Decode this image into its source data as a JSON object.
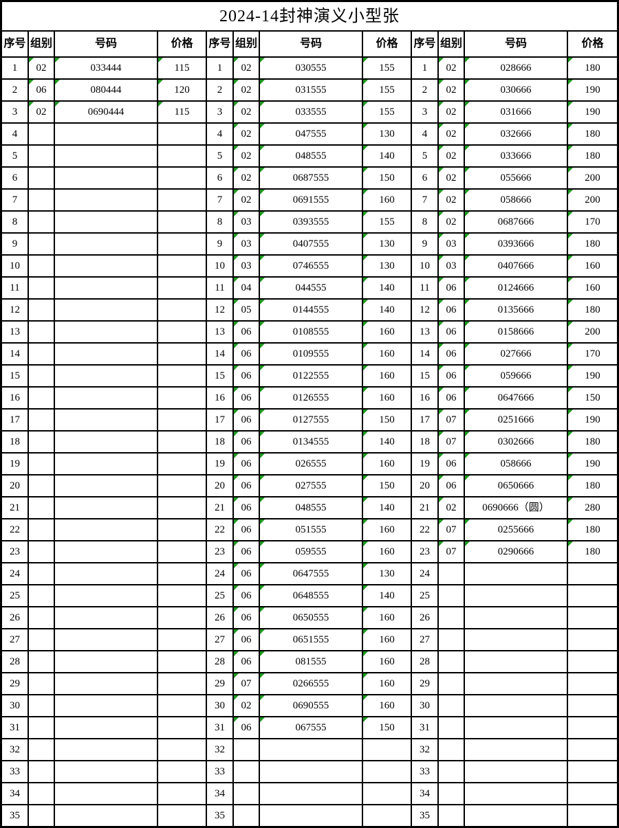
{
  "title": "2024-14封神演义小型张",
  "columns": [
    "序号",
    "组别",
    "号码",
    "价格"
  ],
  "colors": {
    "grid_line": "#000000",
    "cell_background": "#ffffff",
    "error_indicator_green": "#1f9a1f"
  },
  "indicator_exceptions": [
    [
      2,
      20,
      2
    ]
  ],
  "groups": [
    {
      "rows": [
        [
          "1",
          "02",
          "033444",
          "115"
        ],
        [
          "2",
          "06",
          "080444",
          "120"
        ],
        [
          "3",
          "02",
          "0690444",
          "115"
        ],
        [
          "4",
          "",
          "",
          ""
        ],
        [
          "5",
          "",
          "",
          ""
        ],
        [
          "6",
          "",
          "",
          ""
        ],
        [
          "7",
          "",
          "",
          ""
        ],
        [
          "8",
          "",
          "",
          ""
        ],
        [
          "9",
          "",
          "",
          ""
        ],
        [
          "10",
          "",
          "",
          ""
        ],
        [
          "11",
          "",
          "",
          ""
        ],
        [
          "12",
          "",
          "",
          ""
        ],
        [
          "13",
          "",
          "",
          ""
        ],
        [
          "14",
          "",
          "",
          ""
        ],
        [
          "15",
          "",
          "",
          ""
        ],
        [
          "16",
          "",
          "",
          ""
        ],
        [
          "17",
          "",
          "",
          ""
        ],
        [
          "18",
          "",
          "",
          ""
        ],
        [
          "19",
          "",
          "",
          ""
        ],
        [
          "20",
          "",
          "",
          ""
        ],
        [
          "21",
          "",
          "",
          ""
        ],
        [
          "22",
          "",
          "",
          ""
        ],
        [
          "23",
          "",
          "",
          ""
        ],
        [
          "24",
          "",
          "",
          ""
        ],
        [
          "25",
          "",
          "",
          ""
        ],
        [
          "26",
          "",
          "",
          ""
        ],
        [
          "27",
          "",
          "",
          ""
        ],
        [
          "28",
          "",
          "",
          ""
        ],
        [
          "29",
          "",
          "",
          ""
        ],
        [
          "30",
          "",
          "",
          ""
        ],
        [
          "31",
          "",
          "",
          ""
        ],
        [
          "32",
          "",
          "",
          ""
        ],
        [
          "33",
          "",
          "",
          ""
        ],
        [
          "34",
          "",
          "",
          ""
        ],
        [
          "35",
          "",
          "",
          ""
        ]
      ]
    },
    {
      "rows": [
        [
          "1",
          "02",
          "030555",
          "155"
        ],
        [
          "2",
          "02",
          "031555",
          "155"
        ],
        [
          "3",
          "02",
          "033555",
          "155"
        ],
        [
          "4",
          "02",
          "047555",
          "130"
        ],
        [
          "5",
          "02",
          "048555",
          "140"
        ],
        [
          "6",
          "02",
          "0687555",
          "150"
        ],
        [
          "7",
          "02",
          "0691555",
          "160"
        ],
        [
          "8",
          "03",
          "0393555",
          "155"
        ],
        [
          "9",
          "03",
          "0407555",
          "130"
        ],
        [
          "10",
          "03",
          "0746555",
          "130"
        ],
        [
          "11",
          "04",
          "044555",
          "140"
        ],
        [
          "12",
          "05",
          "0144555",
          "140"
        ],
        [
          "13",
          "06",
          "0108555",
          "160"
        ],
        [
          "14",
          "06",
          "0109555",
          "160"
        ],
        [
          "15",
          "06",
          "0122555",
          "160"
        ],
        [
          "16",
          "06",
          "0126555",
          "160"
        ],
        [
          "17",
          "06",
          "0127555",
          "150"
        ],
        [
          "18",
          "06",
          "0134555",
          "140"
        ],
        [
          "19",
          "06",
          "026555",
          "160"
        ],
        [
          "20",
          "06",
          "027555",
          "150"
        ],
        [
          "21",
          "06",
          "048555",
          "140"
        ],
        [
          "22",
          "06",
          "051555",
          "160"
        ],
        [
          "23",
          "06",
          "059555",
          "160"
        ],
        [
          "24",
          "06",
          "0647555",
          "130"
        ],
        [
          "25",
          "06",
          "0648555",
          "140"
        ],
        [
          "26",
          "06",
          "0650555",
          "160"
        ],
        [
          "27",
          "06",
          "0651555",
          "160"
        ],
        [
          "28",
          "06",
          "081555",
          "160"
        ],
        [
          "29",
          "07",
          "0266555",
          "160"
        ],
        [
          "30",
          "02",
          "0690555",
          "160"
        ],
        [
          "31",
          "06",
          "067555",
          "150"
        ],
        [
          "32",
          "",
          "",
          ""
        ],
        [
          "33",
          "",
          "",
          ""
        ],
        [
          "34",
          "",
          "",
          ""
        ],
        [
          "35",
          "",
          "",
          ""
        ]
      ]
    },
    {
      "rows": [
        [
          "1",
          "02",
          "028666",
          "180"
        ],
        [
          "2",
          "02",
          "030666",
          "190"
        ],
        [
          "3",
          "02",
          "031666",
          "190"
        ],
        [
          "4",
          "02",
          "032666",
          "180"
        ],
        [
          "5",
          "02",
          "033666",
          "180"
        ],
        [
          "6",
          "02",
          "055666",
          "200"
        ],
        [
          "7",
          "02",
          "058666",
          "200"
        ],
        [
          "8",
          "02",
          "0687666",
          "170"
        ],
        [
          "9",
          "03",
          "0393666",
          "180"
        ],
        [
          "10",
          "03",
          "0407666",
          "160"
        ],
        [
          "11",
          "06",
          "0124666",
          "160"
        ],
        [
          "12",
          "06",
          "0135666",
          "180"
        ],
        [
          "13",
          "06",
          "0158666",
          "200"
        ],
        [
          "14",
          "06",
          "027666",
          "170"
        ],
        [
          "15",
          "06",
          "059666",
          "190"
        ],
        [
          "16",
          "06",
          "0647666",
          "150"
        ],
        [
          "17",
          "07",
          "0251666",
          "190"
        ],
        [
          "18",
          "07",
          "0302666",
          "180"
        ],
        [
          "19",
          "06",
          "058666",
          "190"
        ],
        [
          "20",
          "06",
          "0650666",
          "180"
        ],
        [
          "21",
          "02",
          "0690666（圆）",
          "280"
        ],
        [
          "22",
          "07",
          "0255666",
          "180"
        ],
        [
          "23",
          "07",
          "0290666",
          "180"
        ],
        [
          "24",
          "",
          "",
          ""
        ],
        [
          "25",
          "",
          "",
          ""
        ],
        [
          "26",
          "",
          "",
          ""
        ],
        [
          "27",
          "",
          "",
          ""
        ],
        [
          "28",
          "",
          "",
          ""
        ],
        [
          "29",
          "",
          "",
          ""
        ],
        [
          "30",
          "",
          "",
          ""
        ],
        [
          "31",
          "",
          "",
          ""
        ],
        [
          "32",
          "",
          "",
          ""
        ],
        [
          "33",
          "",
          "",
          ""
        ],
        [
          "34",
          "",
          "",
          ""
        ],
        [
          "35",
          "",
          "",
          ""
        ]
      ]
    }
  ]
}
